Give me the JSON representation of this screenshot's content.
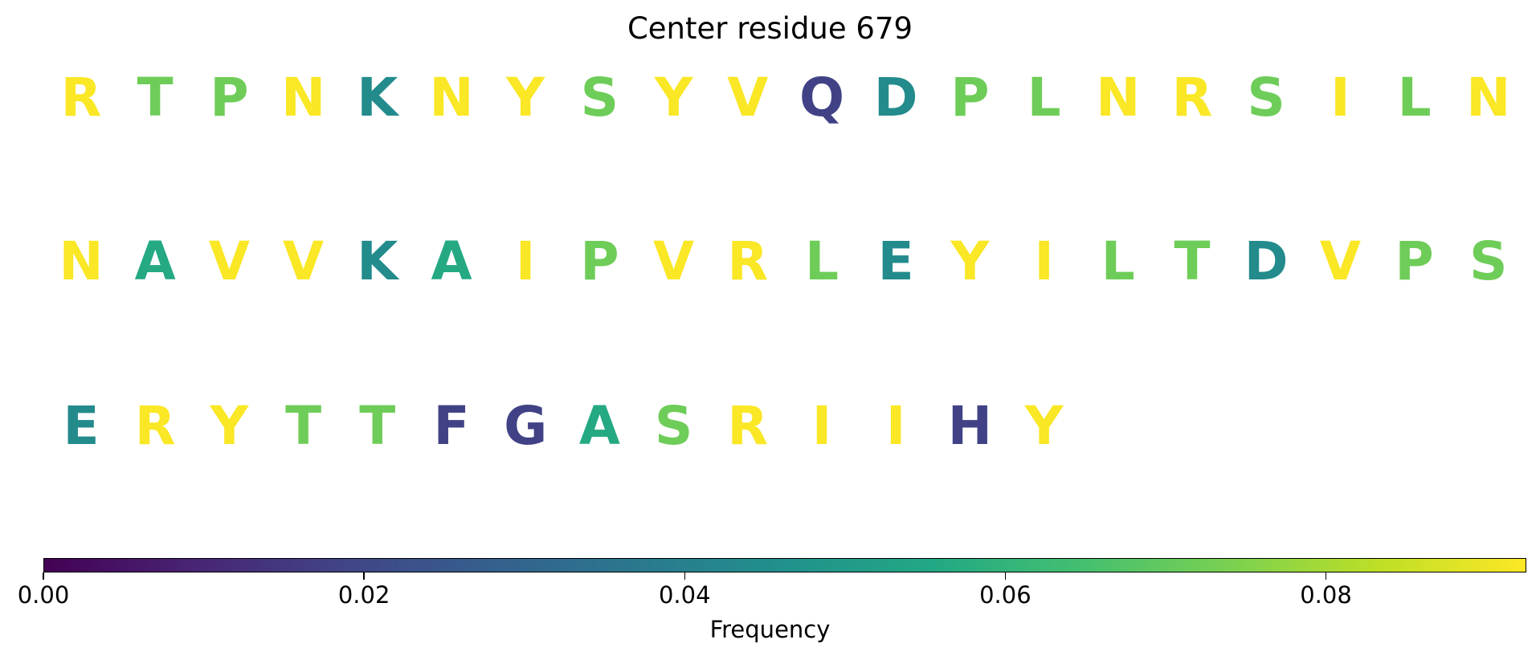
{
  "chart_data": {
    "type": "heatmap",
    "title": "Center residue 679",
    "colormap": "viridis",
    "colorbar": {
      "label": "Frequency",
      "range": [
        0.0,
        0.0925
      ],
      "ticks": [
        "0.00",
        "0.02",
        "0.04",
        "0.06",
        "0.08"
      ],
      "tick_values": [
        0.0,
        0.02,
        0.04,
        0.06,
        0.08
      ]
    },
    "rows": [
      {
        "residues": [
          "R",
          "T",
          "P",
          "N",
          "K",
          "N",
          "Y",
          "S",
          "Y",
          "V",
          "Q",
          "D",
          "P",
          "L",
          "N",
          "R",
          "S",
          "I",
          "L",
          "N"
        ],
        "frequencies": [
          0.092,
          0.072,
          0.072,
          0.092,
          0.044,
          0.092,
          0.092,
          0.072,
          0.092,
          0.092,
          0.018,
          0.044,
          0.072,
          0.072,
          0.092,
          0.092,
          0.072,
          0.092,
          0.072,
          0.092
        ]
      },
      {
        "residues": [
          "N",
          "A",
          "V",
          "V",
          "K",
          "A",
          "I",
          "P",
          "V",
          "R",
          "L",
          "E",
          "Y",
          "I",
          "L",
          "T",
          "D",
          "V",
          "P",
          "S"
        ],
        "frequencies": [
          0.092,
          0.056,
          0.092,
          0.092,
          0.044,
          0.056,
          0.092,
          0.072,
          0.092,
          0.092,
          0.072,
          0.044,
          0.092,
          0.092,
          0.072,
          0.072,
          0.044,
          0.092,
          0.072,
          0.072
        ]
      },
      {
        "residues": [
          "E",
          "R",
          "Y",
          "T",
          "T",
          "F",
          "G",
          "A",
          "S",
          "R",
          "I",
          "I",
          "H",
          "Y"
        ],
        "frequencies": [
          0.044,
          0.092,
          0.092,
          0.072,
          0.072,
          0.018,
          0.018,
          0.056,
          0.072,
          0.092,
          0.092,
          0.092,
          0.018,
          0.092
        ]
      }
    ]
  }
}
